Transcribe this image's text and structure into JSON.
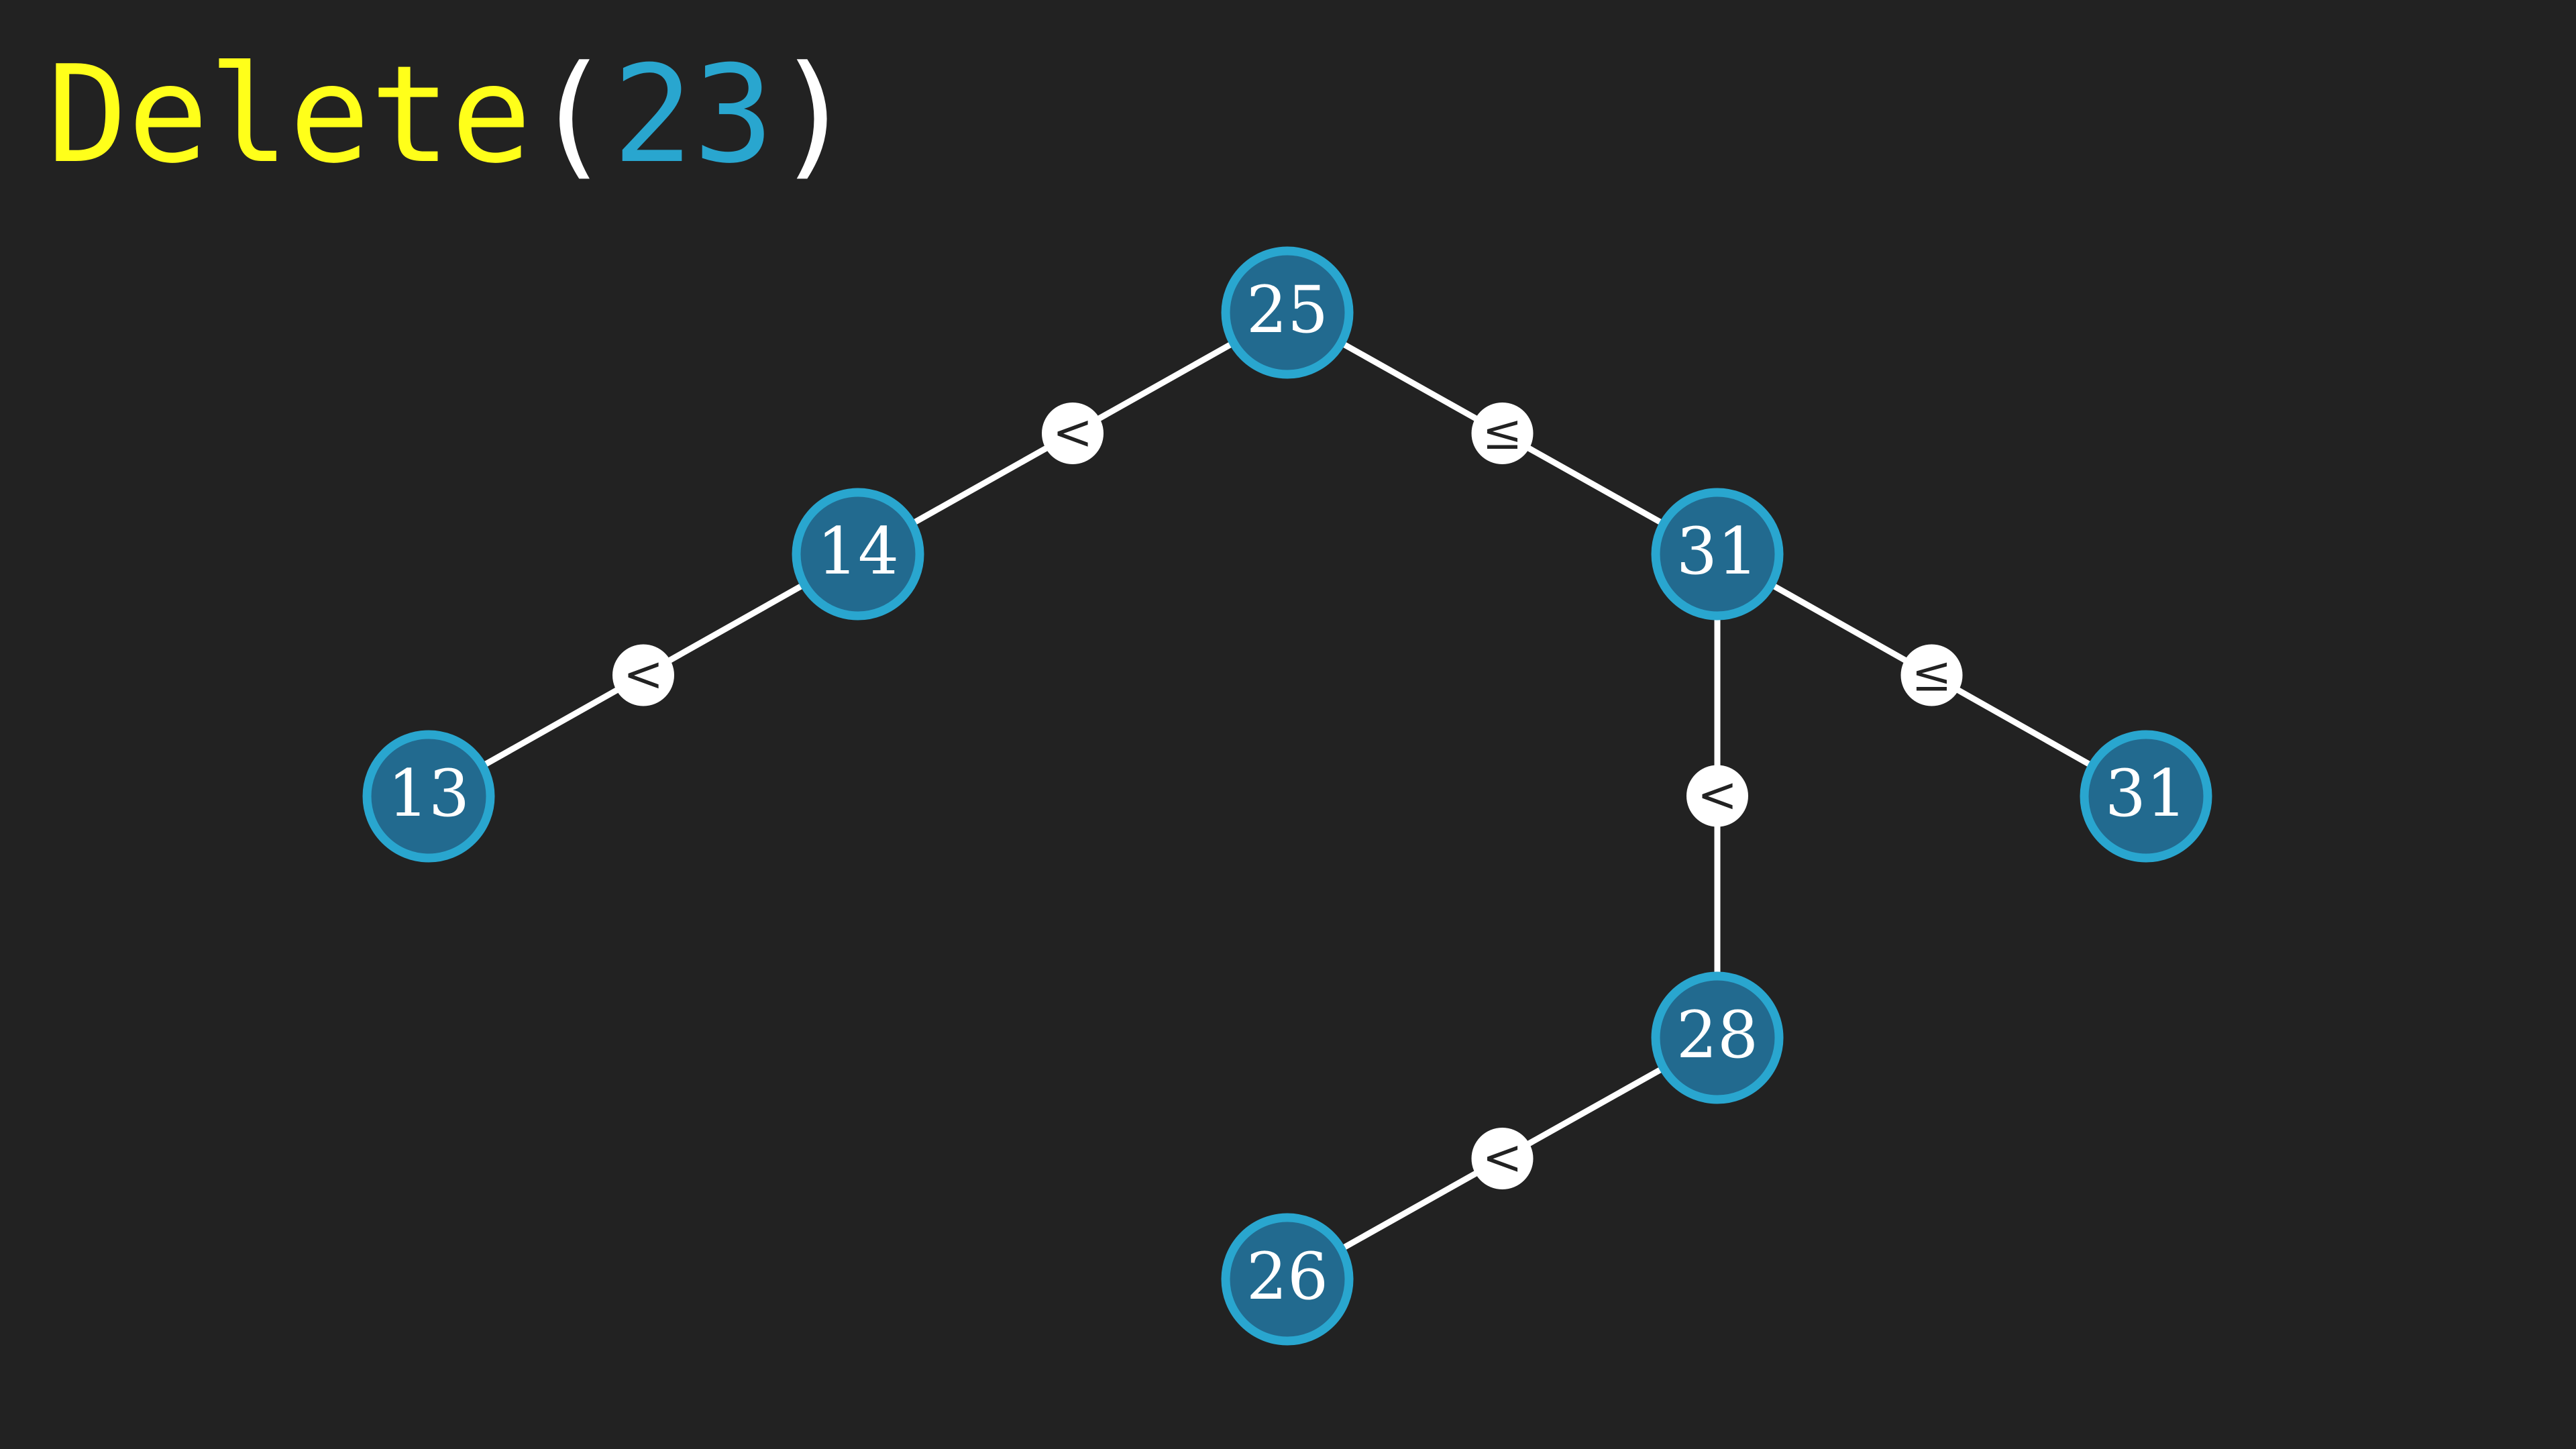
{
  "heading": {
    "function": "Delete",
    "open_paren": "(",
    "argument": "23",
    "close_paren": ")"
  },
  "colors": {
    "background": "#222222",
    "function_text": "#ffff1a",
    "argument_text": "#29a6cf",
    "node_fill": "#226a8f",
    "node_stroke": "#29a6cf",
    "edge": "#ffffff",
    "relation_badge": "#ffffff"
  },
  "tree": {
    "nodes": [
      {
        "id": "n25",
        "value": "25"
      },
      {
        "id": "n14",
        "value": "14"
      },
      {
        "id": "n31a",
        "value": "31"
      },
      {
        "id": "n13",
        "value": "13"
      },
      {
        "id": "n28",
        "value": "28"
      },
      {
        "id": "n31b",
        "value": "31"
      },
      {
        "id": "n26",
        "value": "26"
      }
    ],
    "edges": [
      {
        "from": "n25",
        "to": "n14",
        "relation": "<"
      },
      {
        "from": "n25",
        "to": "n31a",
        "relation": "≤"
      },
      {
        "from": "n14",
        "to": "n13",
        "relation": "<"
      },
      {
        "from": "n31a",
        "to": "n28",
        "relation": "<"
      },
      {
        "from": "n31a",
        "to": "n31b",
        "relation": "≤"
      },
      {
        "from": "n28",
        "to": "n26",
        "relation": "<"
      }
    ]
  }
}
